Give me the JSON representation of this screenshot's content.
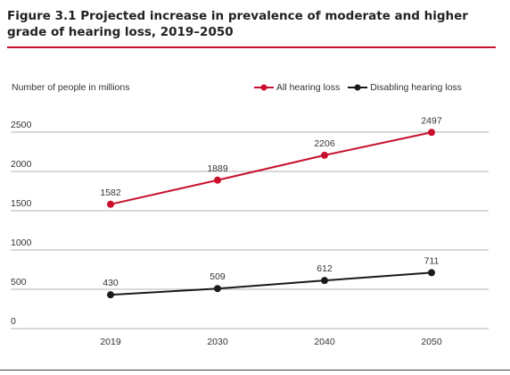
{
  "figure": {
    "title": "Figure 3.1 Projected increase in prevalence of moderate and higher grade of hearing loss, 2019–2050"
  },
  "colors": {
    "accent": "#c8102e",
    "all_hearing_loss": "#c8102e",
    "disabling_hearing_loss": "#1a1a1a",
    "grid": "#9a9a9a"
  },
  "chart_data": {
    "type": "line",
    "title": "Figure 3.1 Projected increase in prevalence of moderate and higher grade of hearing loss, 2019–2050",
    "xlabel": "",
    "ylabel": "Number of people in millions",
    "categories": [
      "2019",
      "2030",
      "2040",
      "2050"
    ],
    "y_ticks": [
      0,
      500,
      1000,
      1500,
      2000,
      2500
    ],
    "ylim": [
      0,
      2500
    ],
    "grid": true,
    "legend_position": "top-right",
    "series": [
      {
        "name": "All hearing loss",
        "color": "#c8102e",
        "values": [
          1582,
          1889,
          2206,
          2497
        ]
      },
      {
        "name": "Disabling hearing loss",
        "color": "#1a1a1a",
        "values": [
          430,
          509,
          612,
          711
        ]
      }
    ]
  }
}
